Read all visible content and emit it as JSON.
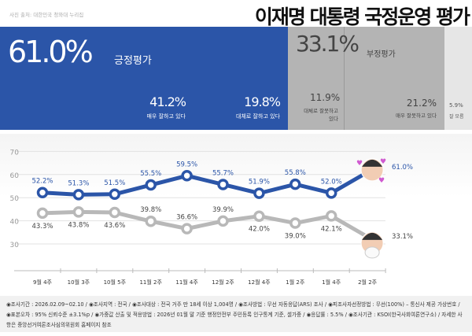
{
  "header": {
    "credit": "사진 출처: 대한민국 청와대 누리집",
    "title": "이재명 대통령 국정운영 평가"
  },
  "summary": {
    "positive": {
      "value": "61.0%",
      "label": "긍정평가",
      "color": "#2b55a8",
      "breakdown": [
        {
          "value": "41.2%",
          "label": "매우 잘하고 있다"
        },
        {
          "value": "19.8%",
          "label": "대체로 잘하고 있다"
        }
      ]
    },
    "negative": {
      "value": "33.1%",
      "label": "부정평가",
      "color": "#b4b4b4",
      "breakdown": [
        {
          "value": "11.9%",
          "label": "대체로 잘못하고 있다"
        },
        {
          "value": "21.2%",
          "label": "매우 잘못하고 있다"
        }
      ]
    },
    "unknown": {
      "value": "5.9%",
      "label": "잘 모름"
    }
  },
  "chart_data": {
    "type": "line",
    "categories": [
      "9월 4주",
      "10월 3주",
      "10월 5주",
      "11월 2주",
      "11월 4주",
      "12월 2주",
      "12월 4주",
      "1월 2주",
      "1월 4주",
      "2월 2주"
    ],
    "yticks": [
      70,
      60,
      50,
      40,
      30
    ],
    "ylim": [
      30,
      70
    ],
    "grid": true,
    "series": [
      {
        "values": [
          52.2,
          51.3,
          51.5,
          55.5,
          59.5,
          55.7,
          51.9,
          55.8,
          52.0,
          61.0
        ],
        "labels": [
          "52.2%",
          "51.3%",
          "51.5%",
          "55.5%",
          "59.5%",
          "55.7%",
          "51.9%",
          "55.8%",
          "52.0%",
          "61.0%"
        ],
        "color": "#2b55a8"
      },
      {
        "values": [
          43.3,
          43.8,
          43.6,
          39.8,
          36.6,
          39.9,
          42.0,
          39.0,
          42.1,
          33.1
        ],
        "labels": [
          "43.3%",
          "43.8%",
          "43.6%",
          "39.8%",
          "36.6%",
          "39.9%",
          "42.0%",
          "39.0%",
          "42.1%",
          "33.1%"
        ],
        "color": "#b8b8b8"
      }
    ]
  },
  "footer": {
    "text": "◉조사기간 : 2026.02.09~02.10 / ◉조사지역 : 전국 / ◉조사대상 : 전국 거주 만 18세 이상 1,004명 / ◉조사방법 : 무선 자동응답(ARS) 조사 / ◉피조사자선정방법 : 무선(100%) – 통신사 제공 가상번호 / ◉표본오차 : 95% 신뢰수준 ±3.1%p / ◉가중값 산출 및 적용방법 : 2026년 01월 말 기준 행정안전부 주민등록 인구통계 기준, 셀가중 / ◉응답률 : 5.5% / ◉조사기관 : KSOI(한국사회여론연구소) / 자세한 사항은 중앙선거여론조사심의위원회 홈페이지 참조"
  }
}
